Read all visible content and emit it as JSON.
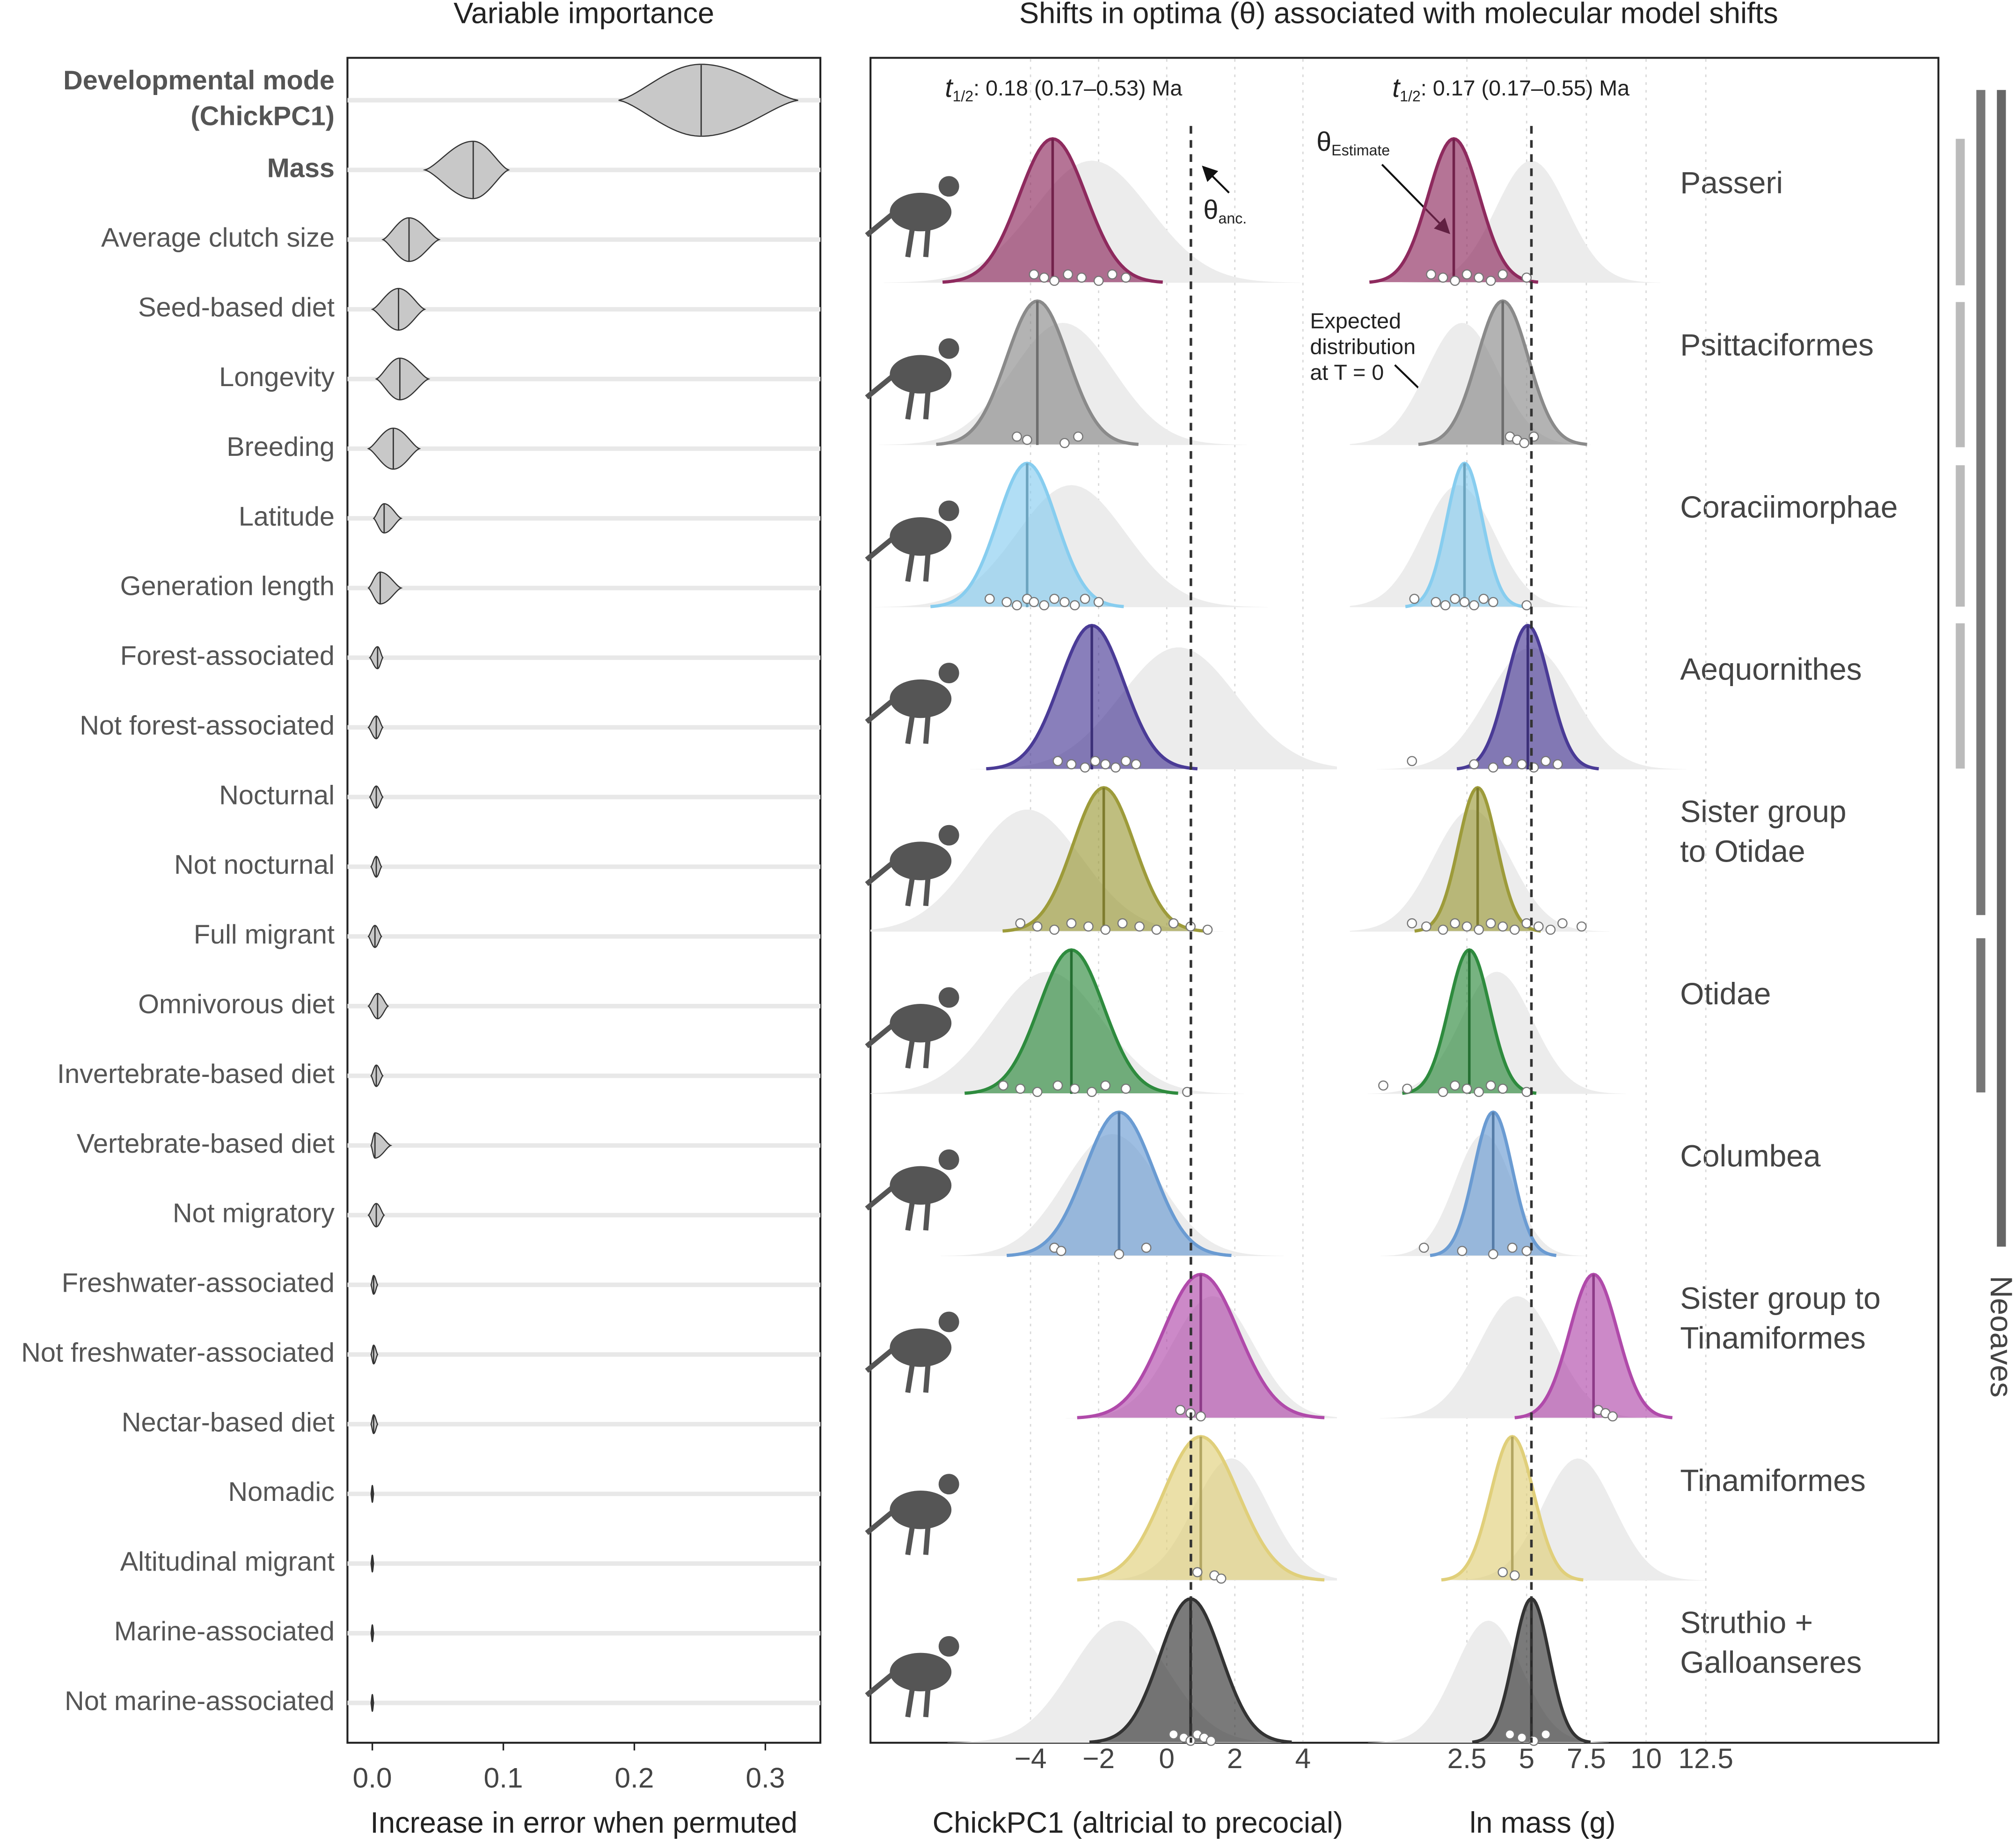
{
  "chart_data": [
    {
      "type": "violin",
      "title": "Variable importance",
      "xlabel": "Increase in error when permuted",
      "categories": [
        "Developmental mode\n(ChickPC1)",
        "Mass",
        "Average clutch size",
        "Seed-based diet",
        "Longevity",
        "Breeding",
        "Latitude",
        "Generation length",
        "Forest-associated",
        "Not forest-associated",
        "Nocturnal",
        "Not nocturnal",
        "Full migrant",
        "Omnivorous diet",
        "Invertebrate-based diet",
        "Vertebrate-based diet",
        "Not migratory",
        "Freshwater-associated",
        "Not freshwater-associated",
        "Nectar-based diet",
        "Nomadic",
        "Altitudinal migrant",
        "Marine-associated",
        "Not marine-associated"
      ],
      "values": [
        0.251,
        0.077,
        0.028,
        0.02,
        0.021,
        0.016,
        0.009,
        0.006,
        0.004,
        0.003,
        0.003,
        0.003,
        0.002,
        0.004,
        0.003,
        0.002,
        0.003,
        0.001,
        0.001,
        0.001,
        0,
        0,
        0,
        0
      ],
      "lower": [
        0.188,
        0.04,
        0.008,
        0,
        0.003,
        -0.003,
        0.001,
        -0.003,
        -0.002,
        -0.003,
        -0.002,
        -0.001,
        -0.003,
        -0.003,
        -0.001,
        -0.001,
        -0.003,
        -0.001,
        -0.001,
        -0.001,
        -0.001,
        -0.001,
        -0.001,
        -0.001
      ],
      "upper": [
        0.325,
        0.104,
        0.051,
        0.04,
        0.043,
        0.036,
        0.022,
        0.022,
        0.008,
        0.008,
        0.008,
        0.007,
        0.007,
        0.012,
        0.008,
        0.014,
        0.009,
        0.004,
        0.004,
        0.004,
        0.001,
        0.001,
        0.001,
        0.001
      ],
      "bold": [
        true,
        true,
        false,
        false,
        false,
        false,
        false,
        false,
        false,
        false,
        false,
        false,
        false,
        false,
        false,
        false,
        false,
        false,
        false,
        false,
        false,
        false,
        false,
        false
      ],
      "color": "#c8c8c8",
      "grid": true,
      "xlim": [
        -0.019,
        0.342
      ],
      "xticks": [
        {
          "value": 0,
          "label": "0.0"
        },
        0.1,
        0.2,
        0.3
      ]
    },
    {
      "type": "ridgeline",
      "title": "Shifts in optima (θ) associated with molecular model shifts",
      "xlabel": "ChickPC1 (altricial to precocial)",
      "categories": [
        "Passeri",
        "Psittaciformes",
        "Coraciimorphae",
        "Aequornithes",
        "Sister group\nto Otidae",
        "Otidae",
        "Columbea",
        "Sister group to\nTinamiformes",
        "Tinamiformes",
        "Struthio +\nGalloanseres"
      ],
      "colors": [
        "#8e2a5e",
        "#8a8a8a",
        "#87cdef",
        "#4a3b96",
        "#9d9b3a",
        "#2e8b3e",
        "#6a9bd2",
        "#b04aaa",
        "#e0cf7a",
        "#333333"
      ],
      "theta": [
        -3.35,
        -3.8,
        -4.1,
        -2.2,
        -1.85,
        -2.8,
        -1.4,
        1.0,
        1.0,
        0.7
      ],
      "theta_sd": [
        0.98,
        0.9,
        0.86,
        0.94,
        0.9,
        0.95,
        1.0,
        1.1,
        1.1,
        0.9
      ],
      "expected": [
        -2.2,
        -3.05,
        -2.8,
        0.35,
        -4.1,
        -3.5,
        -1.6,
        1.35,
        1.9,
        -1.4
      ],
      "expected_sd": [
        1.7,
        1.5,
        1.6,
        1.7,
        1.6,
        1.6,
        1.4,
        1.2,
        1.1,
        1.4
      ],
      "points": [
        [
          -3.9,
          -3.6,
          -3.3,
          -2.9,
          -2.5,
          -2.0,
          -1.6,
          -1.2
        ],
        [
          -4.4,
          -4.1,
          -3.0,
          -2.6
        ],
        [
          -5.2,
          -4.7,
          -4.4,
          -4.1,
          -3.9,
          -3.6,
          -3.3,
          -3.0,
          -2.7,
          -2.4,
          -2.0
        ],
        [
          -3.2,
          -2.8,
          -2.4,
          -2.1,
          -1.8,
          -1.5,
          -1.2,
          -0.9
        ],
        [
          -4.3,
          -3.8,
          -3.3,
          -2.8,
          -2.3,
          -1.8,
          -1.3,
          -0.8,
          -0.3,
          0.2,
          0.7,
          1.2
        ],
        [
          -4.8,
          -4.3,
          -3.8,
          -3.2,
          -2.7,
          -2.2,
          -1.8,
          -1.2,
          0.6
        ],
        [
          -3.3,
          -3.1,
          -1.4,
          -0.6
        ],
        [
          0.4,
          0.7,
          1.0
        ],
        [
          0.9,
          1.4,
          1.6
        ],
        [
          0.2,
          0.5,
          0.7,
          0.9,
          1.1,
          1.3
        ]
      ],
      "theta_anc": 0.71,
      "half_life": {
        "symbol": "t",
        "subscript": "1/2",
        "text": ": 0.18 (0.17–0.53)  Ma"
      },
      "theta_anc_label": {
        "symbol": "θ",
        "subscript": "anc."
      },
      "bracket_label": "Neoaves",
      "xlim": [
        -8.7,
        5.0
      ],
      "xticks": [
        {
          "value": -4,
          "label": "−4"
        },
        {
          "value": -2,
          "label": "−2"
        },
        0,
        2,
        4
      ]
    },
    {
      "type": "ridgeline",
      "xlabel": "ln mass (g)",
      "colors": [
        "#8e2a5e",
        "#8a8a8a",
        "#87cdef",
        "#4a3b96",
        "#9d9b3a",
        "#2e8b3e",
        "#6a9bd2",
        "#b04aaa",
        "#e0cf7a",
        "#333333"
      ],
      "theta": [
        1.95,
        4.0,
        2.4,
        5.05,
        2.95,
        2.6,
        3.6,
        7.8,
        4.4,
        5.2
      ],
      "theta_sd": [
        1.07,
        1.07,
        0.75,
        0.9,
        0.8,
        0.85,
        0.8,
        1.0,
        0.9,
        0.75
      ],
      "expected": [
        5.2,
        2.3,
        2.15,
        5.2,
        2.7,
        3.75,
        3.2,
        4.6,
        7.15,
        3.4
      ],
      "expected_sd": [
        1.5,
        1.5,
        1.5,
        1.8,
        1.6,
        1.5,
        1.2,
        1.6,
        1.5,
        1.4
      ],
      "points": [
        [
          1.0,
          1.5,
          2.0,
          2.5,
          3.0,
          3.5,
          4.0,
          5.0
        ],
        [
          4.3,
          4.6,
          4.9,
          5.3
        ],
        [
          0.3,
          1.2,
          1.6,
          2.0,
          2.4,
          2.8,
          3.2,
          3.6,
          5.0
        ],
        [
          0.2,
          2.8,
          3.6,
          4.2,
          4.8,
          5.3,
          5.8,
          6.3
        ],
        [
          0.2,
          0.8,
          1.5,
          2.0,
          2.5,
          3.0,
          3.5,
          4.0,
          4.5,
          5.0,
          5.5,
          6.0,
          6.5,
          7.3
        ],
        [
          -1.0,
          0.0,
          1.5,
          2.0,
          2.5,
          3.0,
          3.5,
          4.0,
          5.0
        ],
        [
          0.7,
          2.3,
          3.6,
          4.4,
          5.0
        ],
        [
          8.0,
          8.3,
          8.6
        ],
        [
          4.0,
          4.5
        ],
        [
          4.3,
          4.8,
          5.3,
          5.8
        ]
      ],
      "theta_anc": 5.2,
      "half_life": {
        "symbol": "t",
        "subscript": "1/2",
        "text": ": 0.17 (0.17–0.55)  Ma"
      },
      "theta_estimate_label": {
        "symbol": "θ",
        "subscript": "Estimate"
      },
      "expected_label": [
        "Expected",
        "distribution",
        "at T = 0"
      ],
      "xlim": [
        -2.4,
        12.5
      ],
      "xticks": [
        2.5,
        5,
        7.5,
        10,
        12.5
      ]
    }
  ]
}
